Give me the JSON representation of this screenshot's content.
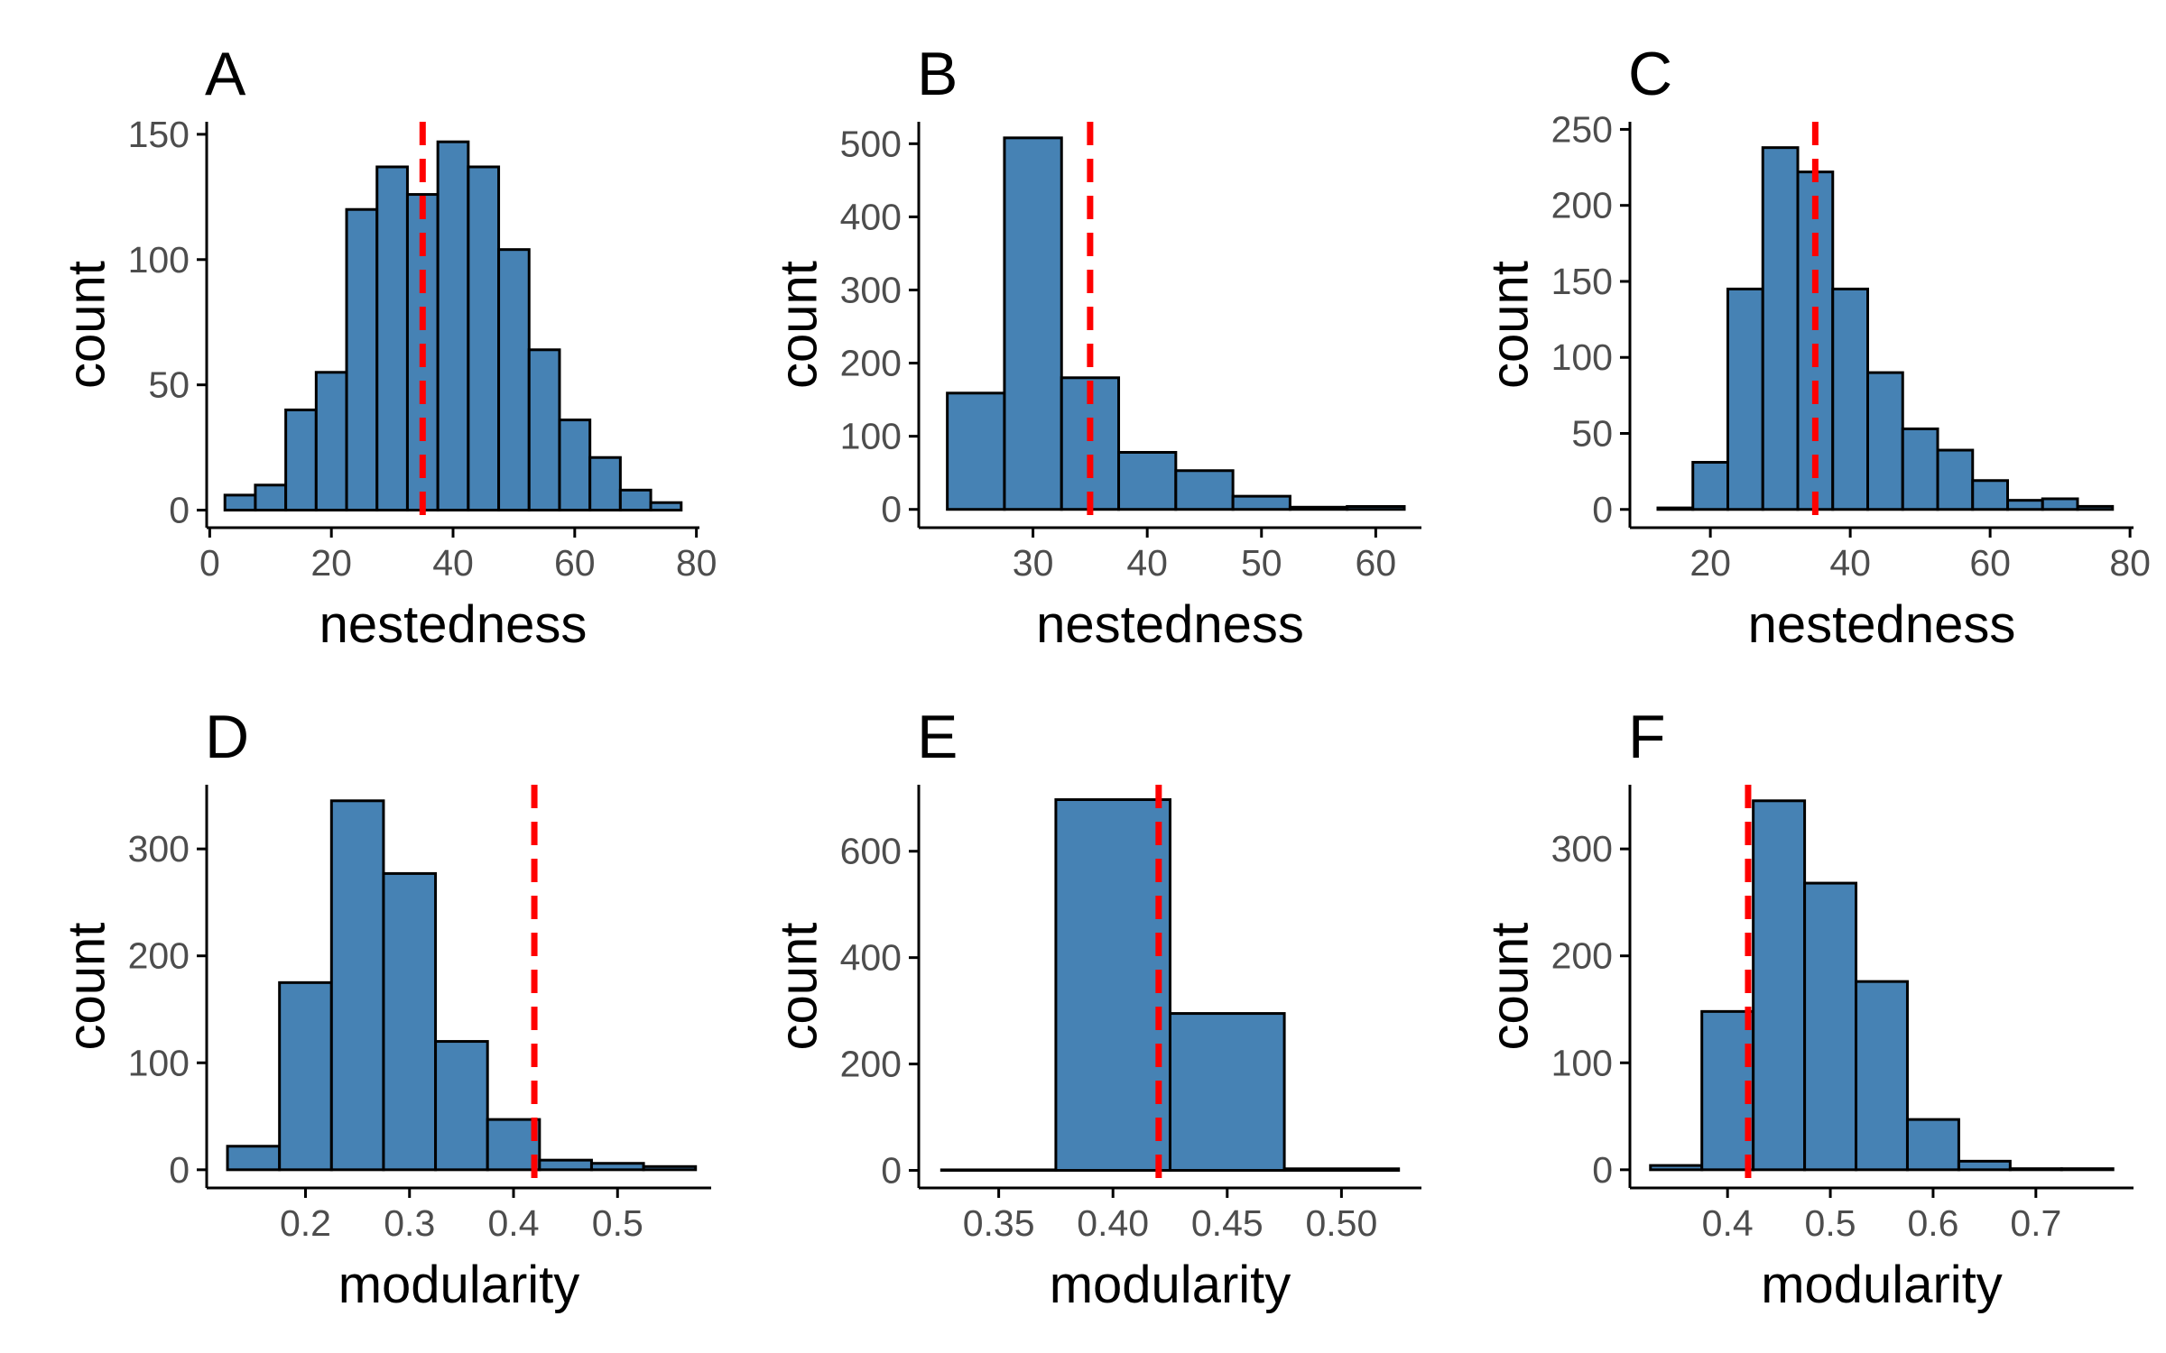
{
  "style": {
    "bar_fill": "#4682B4",
    "bar_stroke": "#000000",
    "reference_line_color": "#FF0000",
    "reference_line_style": "dashed",
    "axis_color": "#000000",
    "tick_label_color": "#4d4d4d",
    "background": "#ffffff",
    "grid": false
  },
  "chart_data": [
    {
      "panel": "A",
      "type": "bar",
      "bar_type": "histogram",
      "xlabel": "nestedness",
      "ylabel": "count",
      "xlim": [
        -0.5,
        80.5
      ],
      "ylim": [
        -7,
        155
      ],
      "xticks": [
        0,
        20,
        40,
        60,
        80
      ],
      "yticks": [
        0,
        50,
        100,
        150
      ],
      "tick_labels_x": [
        "0",
        "20",
        "40",
        "60",
        "80"
      ],
      "tick_labels_y": [
        "0",
        "50",
        "100",
        "150"
      ],
      "bin_edges": [
        2.5,
        7.5,
        12.5,
        17.5,
        22.5,
        27.5,
        32.5,
        37.5,
        42.5,
        47.5,
        52.5,
        57.5,
        62.5,
        67.5,
        72.5,
        77.5
      ],
      "values": [
        6,
        10,
        40,
        55,
        120,
        137,
        126,
        147,
        137,
        104,
        64,
        36,
        21,
        8,
        3
      ],
      "reference_line_x": 35
    },
    {
      "panel": "B",
      "type": "bar",
      "bar_type": "histogram",
      "xlabel": "nestedness",
      "ylabel": "count",
      "xlim": [
        20,
        64
      ],
      "ylim": [
        -25,
        530
      ],
      "xticks": [
        30,
        40,
        50,
        60
      ],
      "yticks": [
        0,
        100,
        200,
        300,
        400,
        500
      ],
      "tick_labels_x": [
        "30",
        "40",
        "50",
        "60"
      ],
      "tick_labels_y": [
        "0",
        "100",
        "200",
        "300",
        "400",
        "500"
      ],
      "bin_edges": [
        22.5,
        27.5,
        32.5,
        37.5,
        42.5,
        47.5,
        52.5,
        57.5,
        62.5
      ],
      "values": [
        159,
        508,
        180,
        78,
        53,
        18,
        3,
        4
      ],
      "reference_line_x": 35
    },
    {
      "panel": "C",
      "type": "bar",
      "bar_type": "histogram",
      "xlabel": "nestedness",
      "ylabel": "count",
      "xlim": [
        8.5,
        80.5
      ],
      "ylim": [
        -12,
        255
      ],
      "xticks": [
        20,
        40,
        60,
        80
      ],
      "yticks": [
        0,
        50,
        100,
        150,
        200,
        250
      ],
      "tick_labels_x": [
        "20",
        "40",
        "60",
        "80"
      ],
      "tick_labels_y": [
        "0",
        "50",
        "100",
        "150",
        "200",
        "250"
      ],
      "bin_edges": [
        12.5,
        17.5,
        22.5,
        27.5,
        32.5,
        37.5,
        42.5,
        47.5,
        52.5,
        57.5,
        62.5,
        67.5,
        72.5,
        77.5
      ],
      "values": [
        1,
        31,
        145,
        238,
        222,
        145,
        90,
        53,
        39,
        19,
        6,
        7,
        2
      ],
      "reference_line_x": 35
    },
    {
      "panel": "D",
      "type": "bar",
      "bar_type": "histogram",
      "xlabel": "modularity",
      "ylabel": "count",
      "xlim": [
        0.105,
        0.59
      ],
      "ylim": [
        -17,
        360
      ],
      "xticks": [
        0.2,
        0.3,
        0.4,
        0.5
      ],
      "yticks": [
        0,
        100,
        200,
        300
      ],
      "tick_labels_x": [
        "0.2",
        "0.3",
        "0.4",
        "0.5"
      ],
      "tick_labels_y": [
        "0",
        "100",
        "200",
        "300"
      ],
      "bin_edges": [
        0.125,
        0.175,
        0.225,
        0.275,
        0.325,
        0.375,
        0.425,
        0.475,
        0.525,
        0.575
      ],
      "values": [
        22,
        175,
        345,
        277,
        120,
        47,
        9,
        6,
        3
      ],
      "reference_line_x": 0.42
    },
    {
      "panel": "E",
      "type": "bar",
      "bar_type": "histogram",
      "xlabel": "modularity",
      "ylabel": "count",
      "xlim": [
        0.315,
        0.535
      ],
      "ylim": [
        -33,
        725
      ],
      "xticks": [
        0.35,
        0.4,
        0.45,
        0.5
      ],
      "yticks": [
        0,
        200,
        400,
        600
      ],
      "tick_labels_x": [
        "0.35",
        "0.40",
        "0.45",
        "0.50"
      ],
      "tick_labels_y": [
        "0",
        "200",
        "400",
        "600"
      ],
      "bin_edges": [
        0.325,
        0.375,
        0.425,
        0.475,
        0.525
      ],
      "values": [
        1,
        697,
        295,
        3
      ],
      "reference_line_x": 0.42
    },
    {
      "panel": "F",
      "type": "bar",
      "bar_type": "histogram",
      "xlabel": "modularity",
      "ylabel": "count",
      "xlim": [
        0.305,
        0.795
      ],
      "ylim": [
        -17,
        360
      ],
      "xticks": [
        0.4,
        0.5,
        0.6,
        0.7
      ],
      "yticks": [
        0,
        100,
        200,
        300
      ],
      "tick_labels_x": [
        "0.4",
        "0.5",
        "0.6",
        "0.7"
      ],
      "tick_labels_y": [
        "0",
        "100",
        "200",
        "300"
      ],
      "bin_edges": [
        0.325,
        0.375,
        0.425,
        0.475,
        0.525,
        0.575,
        0.625,
        0.675,
        0.725,
        0.775
      ],
      "values": [
        4,
        148,
        345,
        268,
        176,
        47,
        8,
        1,
        1
      ],
      "reference_line_x": 0.42
    }
  ]
}
